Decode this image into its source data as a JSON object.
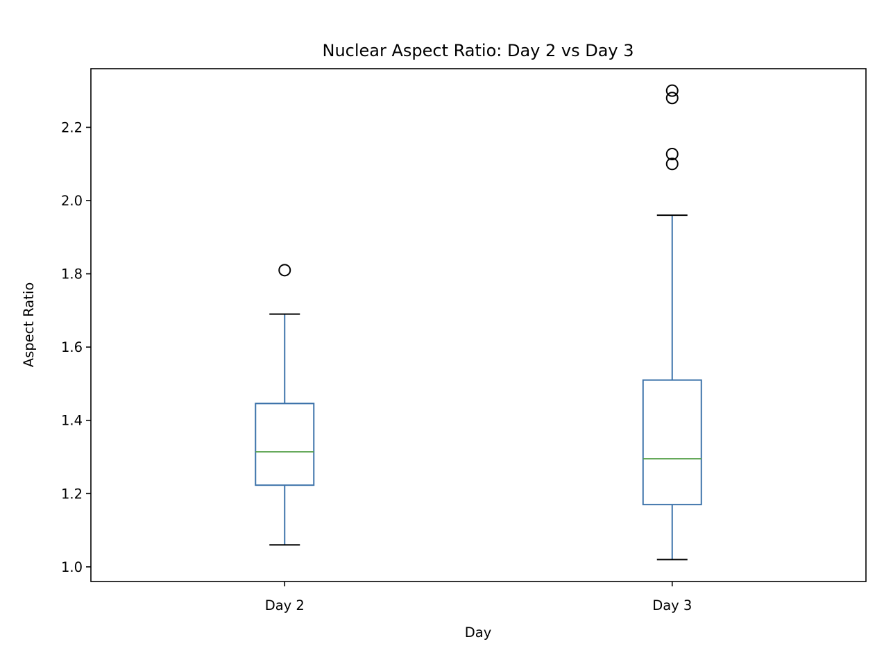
{
  "chart_data": {
    "type": "box",
    "title": "Nuclear Aspect Ratio: Day 2 vs Day 3",
    "xlabel": "Day",
    "ylabel": "Aspect Ratio",
    "ylim": [
      0.96,
      2.36
    ],
    "yticks": [
      "1.0",
      "1.2",
      "1.4",
      "1.6",
      "1.8",
      "2.0",
      "2.2"
    ],
    "grid": false,
    "legend": "none",
    "categories": [
      "Day 2",
      "Day 3"
    ],
    "boxes": [
      {
        "label": "Day 2",
        "whisker_low": 1.06,
        "q1": 1.223,
        "median": 1.314,
        "q3": 1.446,
        "whisker_high": 1.69,
        "outliers": [
          1.81
        ]
      },
      {
        "label": "Day 3",
        "whisker_low": 1.02,
        "q1": 1.17,
        "median": 1.295,
        "q3": 1.51,
        "whisker_high": 1.96,
        "outliers": [
          2.1,
          2.127,
          2.28,
          2.3
        ]
      }
    ],
    "colors": {
      "box": "#3d73aa",
      "median": "#55a048",
      "whisker_cap": "#000000",
      "outlier": "#000000"
    }
  }
}
